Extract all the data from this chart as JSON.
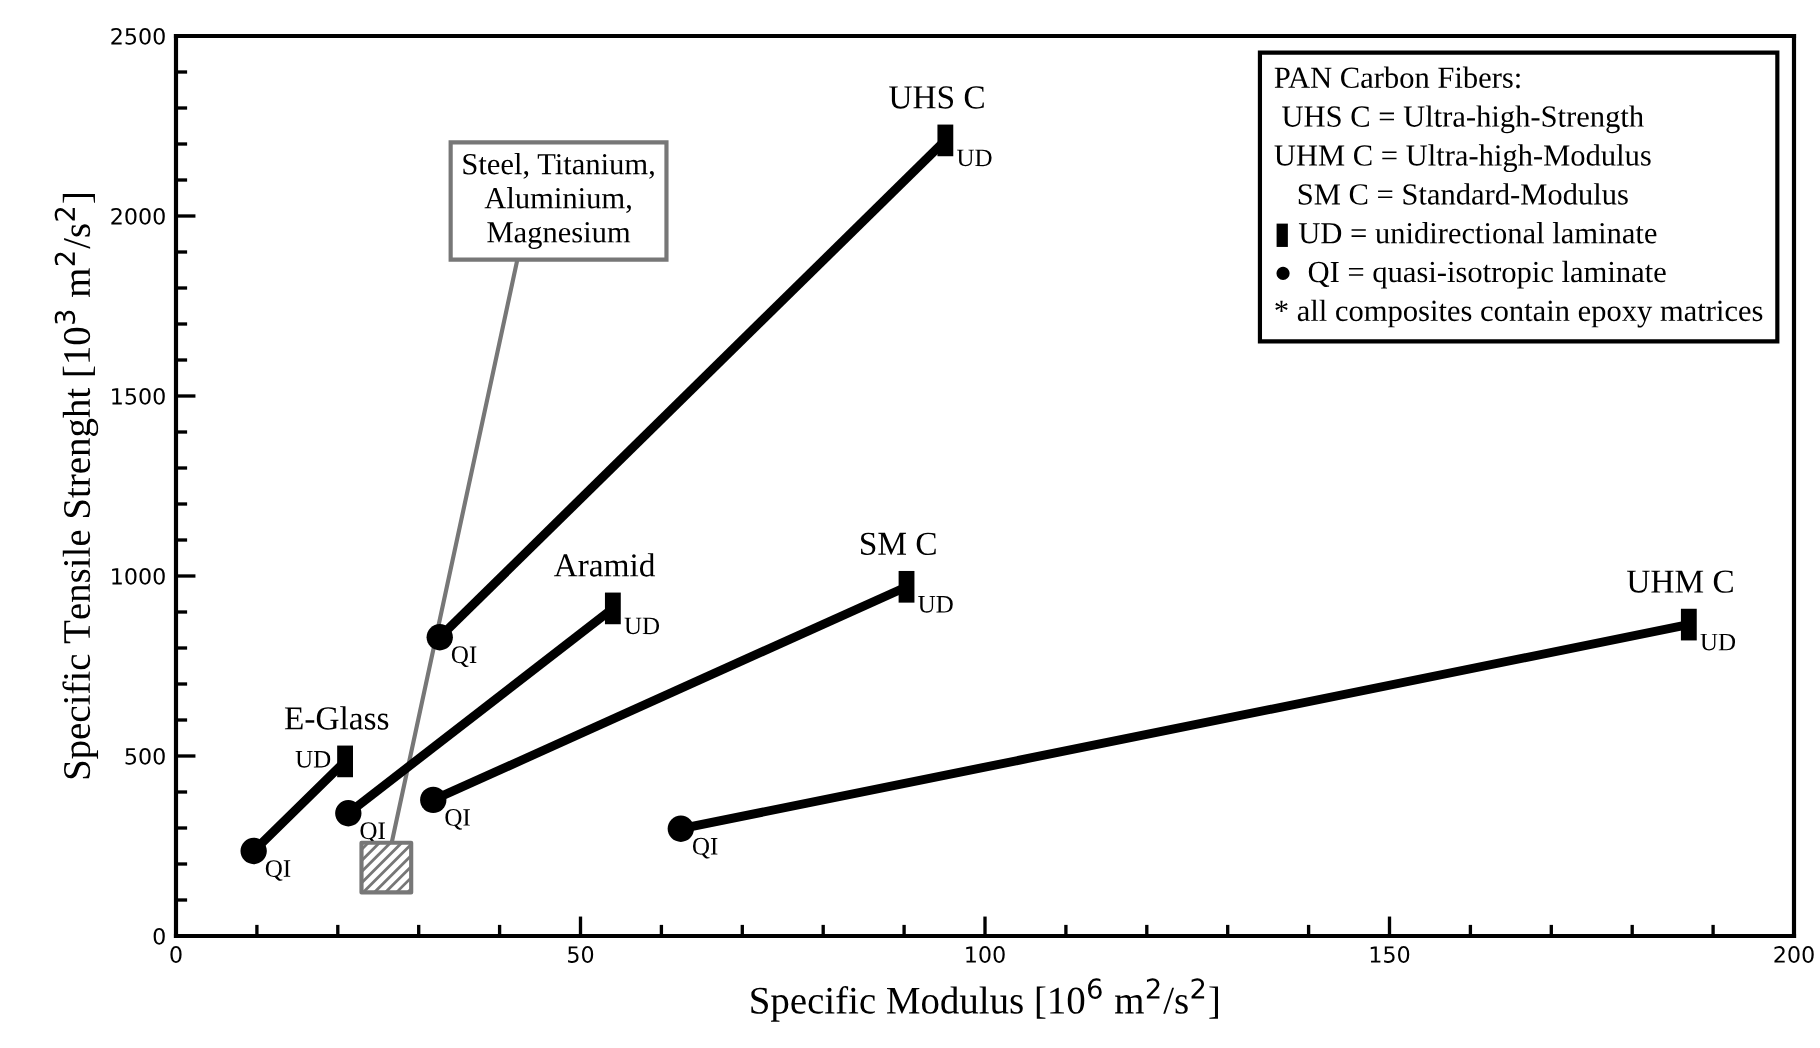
{
  "chart_data": {
    "type": "line",
    "xlabel": "Specific Modulus [10$^{6}$ m$^{2}$/s$^{2}$]",
    "ylabel": "Specific Tensile Strenght [10$^{3}$ m$^{2}$/s$^{2}$]",
    "xlim": [
      0,
      200
    ],
    "ylim": [
      0,
      2500
    ],
    "xticks": [
      0,
      {
        "value": 10,
        "label": null
      },
      {
        "value": 20,
        "label": null
      },
      {
        "value": 30,
        "label": null
      },
      {
        "value": 40,
        "label": null
      },
      50,
      {
        "value": 60,
        "label": null
      },
      {
        "value": 70,
        "label": null
      },
      {
        "value": 80,
        "label": null
      },
      {
        "value": 90,
        "label": null
      },
      100,
      {
        "value": 110,
        "label": null
      },
      {
        "value": 120,
        "label": null
      },
      {
        "value": 130,
        "label": null
      },
      {
        "value": 140,
        "label": null
      },
      150,
      {
        "value": 160,
        "label": null
      },
      {
        "value": 170,
        "label": null
      },
      {
        "value": 180,
        "label": null
      },
      {
        "value": 190,
        "label": null
      },
      200
    ],
    "yticks": [
      0,
      {
        "value": 100,
        "label": null
      },
      {
        "value": 200,
        "label": null
      },
      {
        "value": 300,
        "label": null
      },
      {
        "value": 400,
        "label": null
      },
      500,
      {
        "value": 600,
        "label": null
      },
      {
        "value": 700,
        "label": null
      },
      {
        "value": 800,
        "label": null
      },
      {
        "value": 900,
        "label": null
      },
      1000,
      {
        "value": 1100,
        "label": null
      },
      {
        "value": 1200,
        "label": null
      },
      {
        "value": 1300,
        "label": null
      },
      {
        "value": 1400,
        "label": null
      },
      1500,
      {
        "value": 1600,
        "label": null
      },
      {
        "value": 1700,
        "label": null
      },
      {
        "value": 1800,
        "label": null
      },
      {
        "value": 1900,
        "label": null
      },
      2000,
      {
        "value": 2100,
        "label": null
      },
      {
        "value": 2200,
        "label": null
      },
      {
        "value": 2300,
        "label": null
      },
      {
        "value": 2400,
        "label": null
      },
      2500
    ],
    "grid": false,
    "legend": false,
    "line_style": "solid",
    "series": [
      {
        "name": "E-Glass",
        "color": "#000000",
        "x": [
          9.6,
          20.9
        ],
        "values": [
          236,
          485
        ]
      },
      {
        "name": "Aramid",
        "color": "#000000",
        "x": [
          21.3,
          54
        ],
        "values": [
          341,
          910
        ]
      },
      {
        "name": "UHS C",
        "color": "#000000",
        "x": [
          32.6,
          95.1
        ],
        "values": [
          830,
          2210
        ]
      },
      {
        "name": "SM C",
        "color": "#000000",
        "x": [
          31.8,
          90.3
        ],
        "values": [
          378,
          970
        ]
      },
      {
        "name": "UHM C",
        "color": "#000000",
        "x": [
          62.4,
          187
        ],
        "values": [
          298,
          865
        ]
      },
      {
        "type": "scatter",
        "marker": "circle",
        "color": "#000000",
        "x": [
          9.6,
          21.3,
          32.6,
          31.8,
          62.4
        ],
        "values": [
          236,
          341,
          830,
          378,
          298
        ]
      },
      {
        "type": "scatter",
        "marker": "square",
        "color": "#000000",
        "x": [
          20.9,
          54,
          95.1,
          90.3,
          187
        ],
        "values": [
          485,
          910,
          2210,
          970,
          865
        ]
      }
    ],
    "annotations": [
      {
        "text": "QI",
        "x": 9.6,
        "y": 236
      },
      {
        "text": "QI",
        "x": 21.3,
        "y": 341
      },
      {
        "text": "QI",
        "x": 32.6,
        "y": 830
      },
      {
        "text": "QI",
        "x": 31.8,
        "y": 378
      },
      {
        "text": "QI",
        "x": 62.4,
        "y": 298
      },
      {
        "text": "UD",
        "x": 20.9,
        "y": 485
      },
      {
        "text": "UD",
        "x": 54,
        "y": 910
      },
      {
        "text": "UD",
        "x": 95.1,
        "y": 2210
      },
      {
        "text": "UD",
        "x": 90.3,
        "y": 970
      },
      {
        "text": "UD",
        "x": 187,
        "y": 865
      },
      {
        "text": "Steel, Titanium,\nAluminium,\nMagnesium",
        "x": 26,
        "y": 190
      },
      "PAN Carbon Fibers:",
      " UHS C = Ultra-high-Strength",
      "UHM C = Ultra-high-Modulus",
      "   SM C = Standard-Modulus",
      "▮ UD = unidirectional laminate",
      "●  QI = quasi-isotropic laminate",
      "* all composites contain epoxy matrices"
    ]
  }
}
